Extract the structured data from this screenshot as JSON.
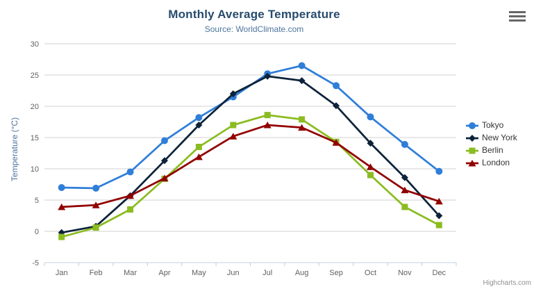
{
  "chart": {
    "credits_label": "Highcharts.com",
    "export_menu_icon": "hamburger-menu-icon"
  },
  "chart_data": {
    "type": "line",
    "title": "Monthly Average Temperature",
    "subtitle": "Source: WorldClimate.com",
    "xlabel": "",
    "ylabel": "Temperature (°C)",
    "ylim": [
      -5,
      30
    ],
    "ytick_step": 5,
    "grid": true,
    "legend_position": "right-middle",
    "axis_colors": {
      "grid_line": "#d0d0d0",
      "axis_line": "#c0d0e0",
      "tick_label": "#606060",
      "axis_title": "#4d759e"
    },
    "categories": [
      "Jan",
      "Feb",
      "Mar",
      "Apr",
      "May",
      "Jun",
      "Jul",
      "Aug",
      "Sep",
      "Oct",
      "Nov",
      "Dec"
    ],
    "series": [
      {
        "name": "Tokyo",
        "color": "#2f7ed8",
        "marker": "circle",
        "values": [
          7.0,
          6.9,
          9.5,
          14.5,
          18.2,
          21.5,
          25.2,
          26.5,
          23.3,
          18.3,
          13.9,
          9.6
        ]
      },
      {
        "name": "New York",
        "color": "#0d233a",
        "marker": "diamond",
        "values": [
          -0.2,
          0.8,
          5.7,
          11.3,
          17.0,
          22.0,
          24.8,
          24.1,
          20.1,
          14.1,
          8.6,
          2.5
        ]
      },
      {
        "name": "Berlin",
        "color": "#8bbc21",
        "marker": "square",
        "values": [
          -0.9,
          0.6,
          3.5,
          8.4,
          13.5,
          17.0,
          18.6,
          17.9,
          14.3,
          9.0,
          3.9,
          1.0
        ]
      },
      {
        "name": "London",
        "color": "#910000",
        "marker": "triangle",
        "values": [
          3.9,
          4.2,
          5.7,
          8.5,
          11.9,
          15.2,
          17.0,
          16.6,
          14.2,
          10.3,
          6.6,
          4.8
        ]
      }
    ]
  }
}
